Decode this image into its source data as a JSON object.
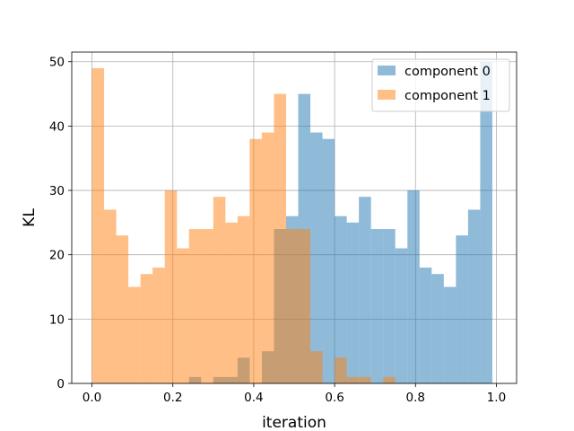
{
  "chart_data": {
    "type": "bar",
    "subtype": "histogram",
    "title": "",
    "xlabel": "iteration",
    "ylabel": "KL",
    "xlim": [
      -0.05,
      1.05
    ],
    "ylim": [
      0,
      51.5
    ],
    "xticks": [
      "0.0",
      "0.2",
      "0.4",
      "0.6",
      "0.8",
      "1.0"
    ],
    "yticks": [
      "0",
      "10",
      "20",
      "30",
      "40",
      "50"
    ],
    "grid": true,
    "legend_position": "upper right",
    "bin_start": 0.0,
    "bin_width": 0.03,
    "series": [
      {
        "name": "component 0",
        "color": "#1f77b4",
        "opacity": 0.5,
        "values": [
          0,
          0,
          0,
          0,
          0,
          0,
          0,
          0,
          1,
          0,
          1,
          1,
          4,
          0,
          5,
          24,
          26,
          45,
          39,
          38,
          26,
          25,
          29,
          24,
          24,
          21,
          30,
          18,
          17,
          15,
          23,
          27,
          50
        ]
      },
      {
        "name": "component 1",
        "color": "#ff7f0e",
        "opacity": 0.5,
        "values": [
          49,
          27,
          23,
          15,
          17,
          18,
          30,
          21,
          24,
          24,
          29,
          25,
          26,
          38,
          39,
          45,
          24,
          24,
          5,
          0,
          4,
          1,
          1,
          0,
          1,
          0,
          0,
          0,
          0,
          0,
          0,
          0,
          0
        ]
      }
    ]
  }
}
